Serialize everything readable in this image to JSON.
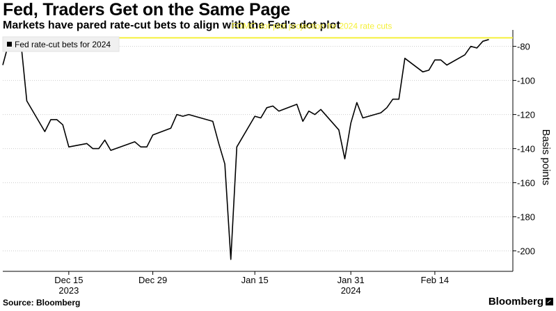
{
  "header": {
    "title": "Fed, Traders Get on the Same Page",
    "subtitle": "Markets have pared rate-cut bets to align with the Fed's dot plot"
  },
  "footer": {
    "source": "Source: Bloomberg",
    "brand": "Bloomberg",
    "brand_icon": "bloomberg-chart-icon"
  },
  "colors": {
    "series": "#000000",
    "reference_line": "#f5f03a",
    "grid": "#cccccc"
  },
  "chart_data": {
    "type": "line",
    "ylabel": "Basis points",
    "ylim": [
      -212,
      -72
    ],
    "y_axis_side": "right",
    "yticks": [
      -80,
      -100,
      -120,
      -140,
      -160,
      -180,
      -200
    ],
    "xlim": [
      "2023-12-04",
      "2024-02-27"
    ],
    "xticks": [
      {
        "date": "2023-12-15",
        "label": "Dec 15"
      },
      {
        "date": "2023-12-29",
        "label": "Dec 29"
      },
      {
        "date": "2024-01-15",
        "label": "Jan 15"
      },
      {
        "date": "2024-01-31",
        "label": "Jan 31"
      },
      {
        "date": "2024-02-14",
        "label": "Feb 14"
      }
    ],
    "year_labels": [
      {
        "date": "2023-12-15",
        "label": "2023"
      },
      {
        "date": "2024-01-31",
        "label": "2024"
      }
    ],
    "grid": "horizontal dotted",
    "legend_position": "top-left",
    "series": [
      {
        "name": "Fed rate-cut bets for 2024",
        "x": [
          "2023-12-04",
          "2023-12-05",
          "2023-12-06",
          "2023-12-07",
          "2023-12-08",
          "2023-12-11",
          "2023-12-12",
          "2023-12-13",
          "2023-12-14",
          "2023-12-15",
          "2023-12-18",
          "2023-12-19",
          "2023-12-20",
          "2023-12-21",
          "2023-12-22",
          "2023-12-26",
          "2023-12-27",
          "2023-12-28",
          "2023-12-29",
          "2024-01-01",
          "2024-01-02",
          "2024-01-03",
          "2024-01-04",
          "2024-01-05",
          "2024-01-08",
          "2024-01-09",
          "2024-01-10",
          "2024-01-11",
          "2024-01-12",
          "2024-01-15",
          "2024-01-16",
          "2024-01-17",
          "2024-01-18",
          "2024-01-19",
          "2024-01-22",
          "2024-01-23",
          "2024-01-24",
          "2024-01-25",
          "2024-01-26",
          "2024-01-29",
          "2024-01-30",
          "2024-01-31",
          "2024-02-01",
          "2024-02-02",
          "2024-02-05",
          "2024-02-06",
          "2024-02-07",
          "2024-02-08",
          "2024-02-09",
          "2024-02-12",
          "2024-02-13",
          "2024-02-14",
          "2024-02-15",
          "2024-02-16",
          "2024-02-19",
          "2024-02-20",
          "2024-02-21",
          "2024-02-22",
          "2024-02-23"
        ],
        "values": [
          -91,
          -78,
          -80,
          -77,
          -112,
          -130,
          -123,
          -123,
          -126,
          -139,
          -137,
          -140,
          -140,
          -135,
          -141,
          -136,
          -139,
          -139,
          -132,
          -128,
          -120,
          -121,
          -120,
          -121,
          -124,
          -137,
          -149,
          -205,
          -139,
          -121,
          -122,
          -116,
          -115,
          -118,
          -114,
          -124,
          -118,
          -120,
          -117,
          -129,
          -146,
          -125,
          -113,
          -122,
          -119,
          -116,
          -111,
          -111,
          -87,
          -95,
          -94,
          -88,
          -88,
          -91,
          -85,
          -80,
          -81,
          -77,
          -76
        ]
      }
    ],
    "reference_lines": [
      {
        "label": "FOMC dot-plot projection for 2024 rate cuts",
        "y": -75
      }
    ]
  }
}
